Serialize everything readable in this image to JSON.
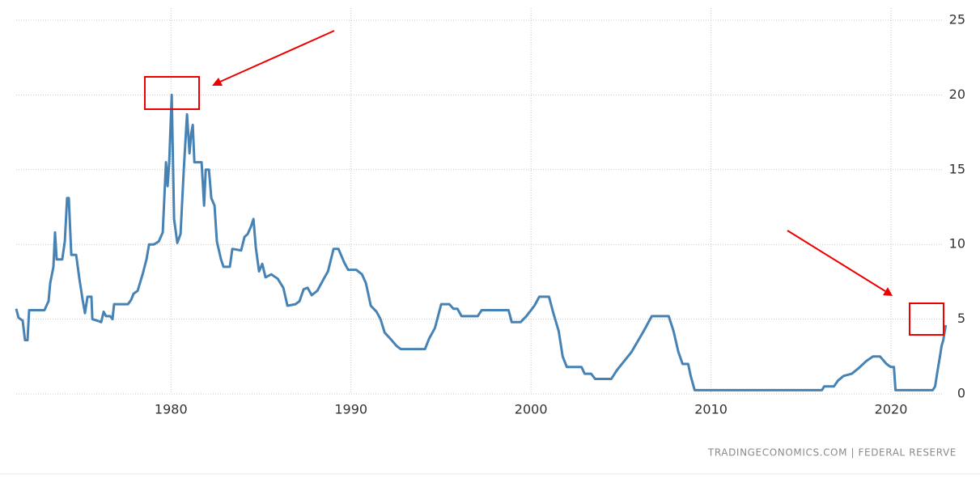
{
  "chart_data": {
    "type": "line",
    "color": "#4682b4",
    "grid": true,
    "source": "TRADINGECONOMICS.COM  |  FEDERAL RESERVE",
    "xlim": [
      1971.4,
      2023.1
    ],
    "ylim": [
      0,
      25
    ],
    "xticks": [
      1980,
      1990,
      2000,
      2010,
      2020
    ],
    "yticks": [
      0,
      5,
      10,
      15,
      20,
      25
    ],
    "x": [
      1971.4,
      1971.53,
      1971.76,
      1971.89,
      1972.03,
      1972.12,
      1972.97,
      1973.2,
      1973.29,
      1973.47,
      1973.56,
      1973.65,
      1973.96,
      1974.1,
      1974.23,
      1974.32,
      1974.46,
      1974.73,
      1974.91,
      1975.09,
      1975.22,
      1975.36,
      1975.58,
      1975.63,
      1975.9,
      1976.12,
      1976.26,
      1976.39,
      1976.62,
      1976.75,
      1976.84,
      1977.61,
      1977.79,
      1977.92,
      1978.15,
      1978.42,
      1978.64,
      1978.78,
      1979.05,
      1979.32,
      1979.54,
      1979.72,
      1979.81,
      1979.9,
      1980.04,
      1980.17,
      1980.35,
      1980.53,
      1980.71,
      1980.89,
      1981.03,
      1981.12,
      1981.21,
      1981.3,
      1981.7,
      1981.84,
      1981.93,
      1982.11,
      1982.24,
      1982.42,
      1982.55,
      1982.78,
      1982.92,
      1983.27,
      1983.41,
      1983.9,
      1984.08,
      1984.26,
      1984.44,
      1984.58,
      1984.71,
      1984.89,
      1985.07,
      1985.25,
      1985.57,
      1985.93,
      1986.24,
      1986.47,
      1986.92,
      1987.14,
      1987.37,
      1987.59,
      1987.82,
      1988.13,
      1988.49,
      1988.72,
      1989.03,
      1989.3,
      1989.62,
      1989.84,
      1990.29,
      1990.61,
      1990.83,
      1991.1,
      1991.42,
      1991.64,
      1991.87,
      1992.18,
      1992.54,
      1992.77,
      1994.11,
      1994.34,
      1994.66,
      1995.01,
      1995.46,
      1995.69,
      1995.91,
      1996.14,
      1997.04,
      1997.26,
      1998.75,
      1998.93,
      1999.42,
      1999.74,
      2000.19,
      2000.46,
      2001.0,
      2001.22,
      2001.54,
      2001.76,
      2001.99,
      2002.8,
      2002.98,
      2003.34,
      2003.56,
      2004.46,
      2004.78,
      2005.58,
      2006.26,
      2006.71,
      2007.65,
      2007.92,
      2008.19,
      2008.42,
      2008.73,
      2008.87,
      2009.09,
      2016.16,
      2016.29,
      2016.83,
      2017.06,
      2017.37,
      2017.82,
      2018.18,
      2018.63,
      2018.99,
      2019.39,
      2019.75,
      2019.98,
      2020.16,
      2020.25,
      2022.32,
      2022.45,
      2022.58,
      2022.72,
      2022.81,
      2022.9,
      2023.04
    ],
    "values": [
      5.7,
      5.1,
      4.9,
      3.6,
      3.6,
      5.6,
      5.6,
      6.2,
      7.4,
      8.5,
      10.8,
      9.0,
      9.0,
      10.2,
      13.1,
      13.1,
      9.3,
      9.3,
      7.7,
      6.3,
      5.4,
      6.5,
      6.5,
      5.0,
      4.9,
      4.8,
      5.5,
      5.2,
      5.2,
      5.0,
      6.0,
      6.0,
      6.3,
      6.7,
      6.9,
      8.0,
      9.0,
      10.0,
      10.0,
      10.2,
      10.8,
      15.5,
      13.9,
      15.5,
      20.0,
      11.7,
      10.1,
      10.7,
      15.0,
      18.7,
      16.1,
      17.4,
      18.0,
      15.5,
      15.5,
      12.6,
      15.0,
      15.0,
      13.1,
      12.6,
      10.2,
      9.0,
      8.5,
      8.5,
      9.7,
      9.6,
      10.5,
      10.7,
      11.2,
      11.7,
      9.8,
      8.2,
      8.7,
      7.8,
      8.0,
      7.7,
      7.1,
      5.9,
      6.0,
      6.2,
      7.0,
      7.1,
      6.6,
      6.9,
      7.7,
      8.2,
      9.7,
      9.7,
      8.8,
      8.3,
      8.3,
      8.0,
      7.4,
      5.9,
      5.5,
      5.0,
      4.1,
      3.7,
      3.2,
      3.0,
      3.0,
      3.7,
      4.4,
      6.0,
      6.0,
      5.7,
      5.7,
      5.2,
      5.2,
      5.6,
      5.6,
      4.8,
      4.8,
      5.2,
      5.9,
      6.5,
      6.5,
      5.5,
      4.2,
      2.5,
      1.8,
      1.8,
      1.35,
      1.35,
      1.0,
      1.0,
      1.6,
      2.8,
      4.2,
      5.2,
      5.2,
      4.2,
      2.8,
      2.0,
      2.0,
      1.2,
      0.25,
      0.25,
      0.5,
      0.5,
      0.9,
      1.2,
      1.35,
      1.7,
      2.2,
      2.5,
      2.5,
      2.0,
      1.8,
      1.8,
      0.25,
      0.25,
      0.5,
      1.5,
      2.5,
      3.2,
      3.6,
      4.6
    ]
  }
}
